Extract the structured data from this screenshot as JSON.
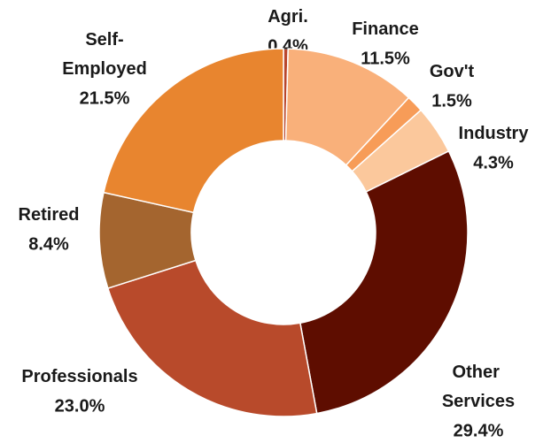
{
  "chart_data": {
    "type": "donut",
    "categories": [
      "Agri.",
      "Finance",
      "Gov't",
      "Industry",
      "Other Services",
      "Professionals",
      "Retired",
      "Self-Employed"
    ],
    "values": [
      0.4,
      11.5,
      1.5,
      4.3,
      29.4,
      23.0,
      8.4,
      21.5
    ],
    "value_labels": [
      "0.4%",
      "11.5%",
      "1.5%",
      "4.3%",
      "29.4%",
      "23.0%",
      "8.4%",
      "21.5%"
    ],
    "colors": [
      "#b9462c",
      "#f9b07a",
      "#f79c58",
      "#fbc89c",
      "#5e0d00",
      "#b84a2b",
      "#a4652f",
      "#e8852f"
    ]
  }
}
